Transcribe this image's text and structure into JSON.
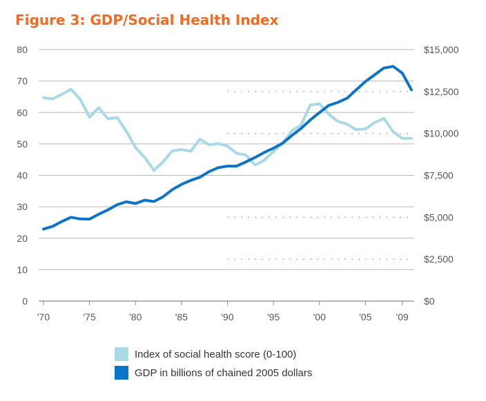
{
  "chart_data": {
    "type": "line",
    "title": "Figure 3: GDP/Social Health Index",
    "colors": {
      "title": "#F26B21",
      "social": "#A9D9E6",
      "gdp": "#0B74C9",
      "grid": "#B8B8B8",
      "dots": "#8A8A8A"
    },
    "left_axis": {
      "ylim": [
        0,
        80
      ],
      "ticks": [
        "0",
        "10",
        "20",
        "30",
        "40",
        "50",
        "60",
        "70",
        "80"
      ]
    },
    "right_axis": {
      "ylim": [
        0,
        15000
      ],
      "ticks": [
        "$0",
        "$2,500",
        "$5,000",
        "$7,500",
        "$10,000",
        "$12,500",
        "$15,000"
      ]
    },
    "x_axis": {
      "range": [
        1970,
        2010
      ],
      "ticks": [
        {
          "value": 1970,
          "label": "'70"
        },
        {
          "value": 1975,
          "label": "'75"
        },
        {
          "value": 1980,
          "label": "'80"
        },
        {
          "value": 1985,
          "label": "'85"
        },
        {
          "value": 1990,
          "label": "'90"
        },
        {
          "value": 1995,
          "label": "'95"
        },
        {
          "value": 2000,
          "label": "'00"
        },
        {
          "value": 2005,
          "label": "'05"
        },
        {
          "value": 2009,
          "label": "'09"
        }
      ]
    },
    "dotted_reference_lines": {
      "x_start": 1990,
      "levels": [
        {
          "value": 2500,
          "x_start": 1990
        },
        {
          "value": 5000,
          "x_start": 1990
        },
        {
          "value": 10000,
          "x_start": 1990
        },
        {
          "value": 12500,
          "x_start": 1990
        }
      ]
    },
    "series": [
      {
        "name": "Index of social health score (0-100)",
        "axis": "left",
        "x": [
          1970,
          1971,
          1972,
          1973,
          1974,
          1975,
          1976,
          1977,
          1978,
          1979,
          1980,
          1981,
          1982,
          1983,
          1984,
          1985,
          1986,
          1987,
          1988,
          1989,
          1990,
          1991,
          1992,
          1993,
          1994,
          1995,
          1996,
          1997,
          1998,
          1999,
          2000,
          2001,
          2002,
          2003,
          2004,
          2005,
          2006,
          2007,
          2008,
          2009,
          2010
        ],
        "values": [
          64.7,
          64.3,
          65.8,
          67.4,
          64.1,
          58.5,
          61.5,
          58.0,
          58.4,
          54.1,
          48.8,
          45.7,
          41.6,
          44.3,
          47.8,
          48.2,
          47.7,
          51.5,
          49.7,
          50.1,
          49.3,
          47.0,
          46.5,
          43.3,
          44.8,
          47.6,
          50.2,
          54.2,
          56.0,
          62.4,
          62.8,
          59.5,
          57.2,
          56.3,
          54.5,
          54.8,
          56.8,
          58.1,
          53.9,
          51.8,
          51.8
        ]
      },
      {
        "name": "GDP in billions of chained 2005 dollars",
        "axis": "right",
        "x": [
          1970,
          1971,
          1972,
          1973,
          1974,
          1975,
          1976,
          1977,
          1978,
          1979,
          1980,
          1981,
          1982,
          1983,
          1984,
          1985,
          1986,
          1987,
          1988,
          1989,
          1990,
          1991,
          1992,
          1993,
          1994,
          1995,
          1996,
          1997,
          1998,
          1999,
          2000,
          2001,
          2002,
          2003,
          2004,
          2005,
          2006,
          2007,
          2008,
          2009,
          2010
        ],
        "values": [
          4300,
          4460,
          4750,
          5000,
          4900,
          4890,
          5180,
          5440,
          5750,
          5920,
          5820,
          6020,
          5940,
          6220,
          6650,
          6960,
          7200,
          7390,
          7720,
          7960,
          8050,
          8050,
          8300,
          8570,
          8870,
          9120,
          9420,
          9880,
          10300,
          10800,
          11250,
          11670,
          11850,
          12100,
          12600,
          13100,
          13500,
          13900,
          14000,
          13600,
          12600
        ]
      }
    ],
    "legend": {
      "placement": "bottom-center",
      "items": [
        {
          "label": "Index of social health score (0-100)",
          "color": "#A9D9E6"
        },
        {
          "label": "GDP in billions of chained 2005 dollars",
          "color": "#0B74C9"
        }
      ]
    }
  }
}
